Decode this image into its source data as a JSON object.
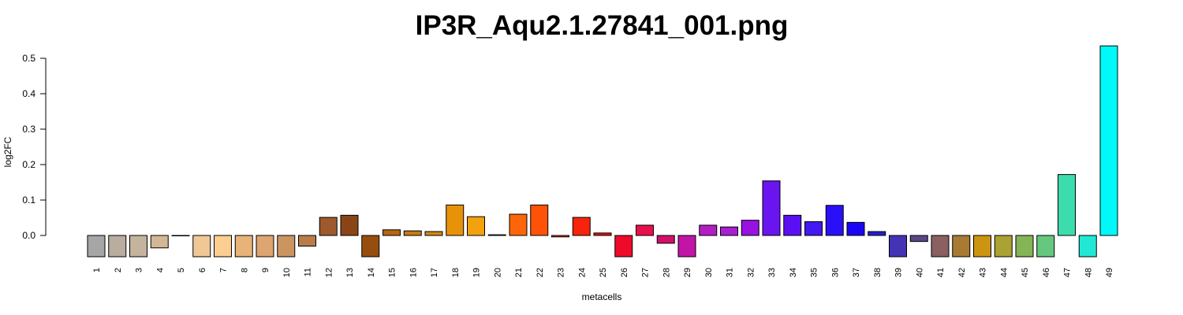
{
  "chart_data": {
    "type": "bar",
    "title": "IP3R_Aqu2.1.27841_001.png",
    "xlabel": "metacells",
    "ylabel": "log2FC",
    "ylim": [
      -0.06,
      0.53
    ],
    "yticks": [
      0.0,
      0.1,
      0.2,
      0.3,
      0.4,
      0.5
    ],
    "ytick_labels": [
      "0.0",
      "0.1",
      "0.2",
      "0.3",
      "0.4",
      "0.5"
    ],
    "grid": false,
    "categories": [
      "1",
      "2",
      "3",
      "4",
      "5",
      "6",
      "7",
      "8",
      "9",
      "10",
      "11",
      "12",
      "13",
      "14",
      "15",
      "16",
      "17",
      "18",
      "19",
      "20",
      "21",
      "22",
      "23",
      "24",
      "25",
      "26",
      "27",
      "28",
      "29",
      "30",
      "31",
      "32",
      "33",
      "34",
      "35",
      "36",
      "37",
      "38",
      "39",
      "40",
      "41",
      "42",
      "43",
      "44",
      "45",
      "46",
      "47",
      "48",
      "49"
    ],
    "values": [
      -0.06,
      -0.06,
      -0.06,
      -0.035,
      0.0,
      -0.06,
      -0.06,
      -0.06,
      -0.06,
      -0.06,
      -0.03,
      0.051,
      0.057,
      -0.06,
      0.016,
      0.013,
      0.011,
      0.086,
      0.053,
      0.002,
      0.06,
      0.086,
      -0.004,
      0.051,
      0.007,
      -0.06,
      0.029,
      -0.022,
      -0.06,
      0.029,
      0.024,
      0.043,
      0.154,
      0.057,
      0.039,
      0.085,
      0.037,
      0.011,
      -0.06,
      -0.017,
      -0.06,
      -0.06,
      -0.06,
      -0.06,
      -0.06,
      -0.06,
      0.172,
      -0.06,
      0.535
    ],
    "colors": [
      "#a6a6a6",
      "#b8ad9e",
      "#c4b39d",
      "#d3b896",
      "#e0c090",
      "#f0c896",
      "#fdce92",
      "#e8b378",
      "#dda56f",
      "#cc9560",
      "#b87d48",
      "#9e5a2c",
      "#8a4516",
      "#984d10",
      "#b6660e",
      "#c57a15",
      "#d48614",
      "#e8920a",
      "#f2a20e",
      "#ee6a0c",
      "#fc6608",
      "#fd5208",
      "#f83a0c",
      "#f6240c",
      "#e8140c",
      "#ee0a2a",
      "#e8104a",
      "#d2106a",
      "#c214a6",
      "#b21ec2",
      "#a81ed0",
      "#9812e2",
      "#6a14f0",
      "#5a10f2",
      "#4418f0",
      "#2a10f6",
      "#1a06f4",
      "#2620d0",
      "#4433b4",
      "#5a4688",
      "#8a6060",
      "#a87a34",
      "#cc9410",
      "#aaa232",
      "#84b455",
      "#66c87e",
      "#3cdcac",
      "#20e8d4",
      "#00f8f8"
    ]
  }
}
